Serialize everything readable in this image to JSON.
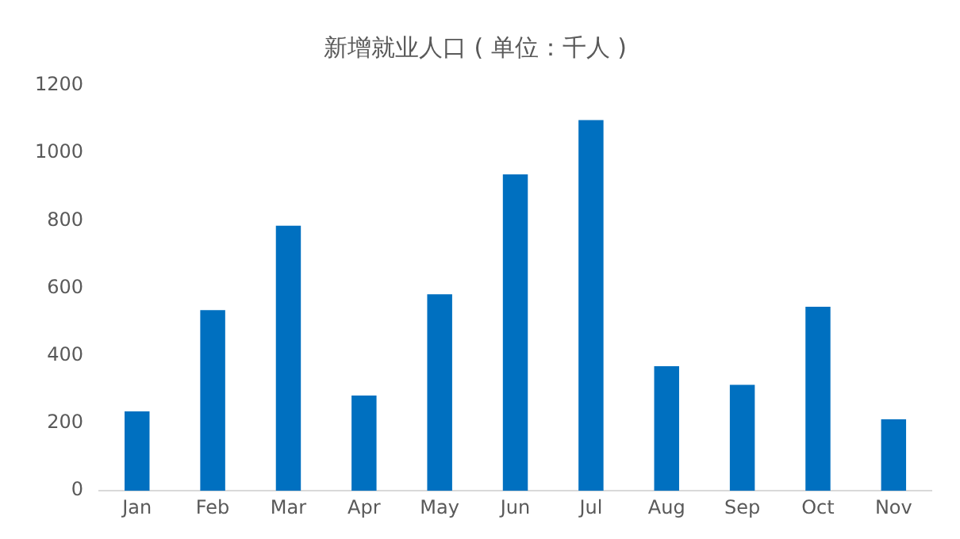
{
  "chart_data": {
    "type": "bar",
    "title": "新增就业人口 ( 单位：千人 )",
    "categories": [
      "Jan",
      "Feb",
      "Mar",
      "Apr",
      "May",
      "Jun",
      "Jul",
      "Aug",
      "Sep",
      "Oct",
      "Nov"
    ],
    "values": [
      235,
      535,
      785,
      282,
      582,
      937,
      1098,
      369,
      314,
      545,
      212
    ],
    "color": "#0070c0",
    "ylim": [
      0,
      1200
    ],
    "yticks": [
      0,
      200,
      400,
      600,
      800,
      1000,
      1200
    ],
    "grid": false,
    "legend": false
  }
}
